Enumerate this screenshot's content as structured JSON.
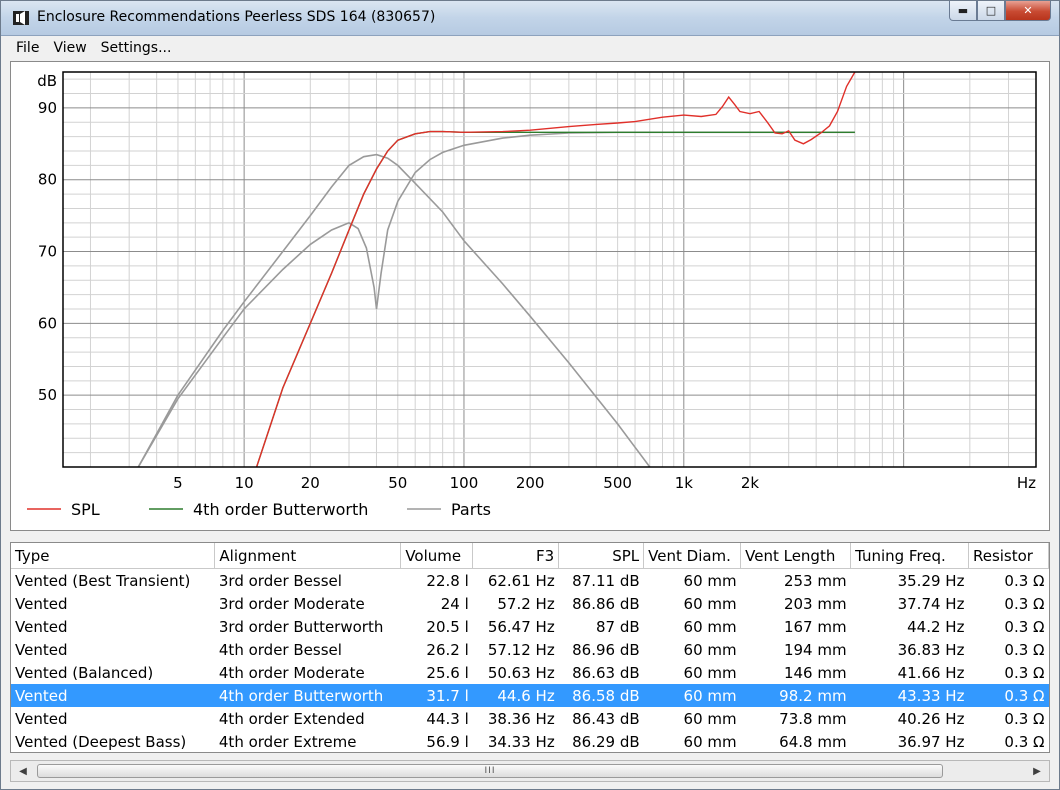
{
  "window": {
    "title": "Enclosure Recommendations Peerless SDS 164 (830657)",
    "controls": {
      "minimize": "▬",
      "maximize": "□",
      "close": "✕"
    }
  },
  "menu": {
    "items": [
      "File",
      "View",
      "Settings..."
    ]
  },
  "chart_data": {
    "type": "line",
    "x_scale": "log",
    "xlim": [
      1.5,
      40000
    ],
    "ylim": [
      40,
      95
    ],
    "ylabel": "dB",
    "xlabel": "Hz",
    "y_ticks": [
      50,
      60,
      70,
      80,
      90
    ],
    "x_ticks": [
      5,
      10,
      20,
      50,
      100,
      200,
      500,
      1000,
      2000
    ],
    "x_tick_labels": [
      "5",
      "10",
      "20",
      "50",
      "100",
      "200",
      "500",
      "1k",
      "2k"
    ],
    "grid": true,
    "legend_position": "bottom",
    "colors": {
      "SPL": "#e0302a",
      "4th order Butterworth": "#2e7d2e",
      "Parts": "#9a9a9a"
    },
    "series": [
      {
        "name": "SPL",
        "x": [
          11.4,
          15,
          20,
          25,
          30,
          35,
          40,
          45,
          50,
          60,
          70,
          80,
          100,
          150,
          200,
          300,
          400,
          500,
          600,
          800,
          1000,
          1200,
          1400,
          1500,
          1600,
          1700,
          1800,
          2000,
          2200,
          2400,
          2600,
          2800,
          3000,
          3200,
          3500,
          3800,
          4200,
          4600,
          5000,
          5500,
          6000
        ],
        "y": [
          40,
          51,
          60,
          67,
          73,
          78,
          81.5,
          84,
          85.5,
          86.4,
          86.7,
          86.7,
          86.6,
          86.7,
          86.9,
          87.4,
          87.7,
          87.9,
          88.1,
          88.7,
          89.0,
          88.8,
          89.1,
          90.2,
          91.5,
          90.5,
          89.5,
          89.2,
          89.5,
          88.0,
          86.5,
          86.4,
          86.8,
          85.5,
          85.0,
          85.6,
          86.5,
          87.5,
          89.5,
          93.0,
          95.0
        ]
      },
      {
        "name": "4th order Butterworth",
        "x": [
          11.4,
          15,
          20,
          25,
          30,
          35,
          40,
          45,
          50,
          60,
          70,
          80,
          100,
          150,
          200,
          300,
          500,
          1000,
          2000,
          6000
        ],
        "y": [
          40,
          51,
          60,
          67,
          73,
          78,
          81.5,
          84,
          85.5,
          86.4,
          86.7,
          86.7,
          86.6,
          86.6,
          86.6,
          86.6,
          86.6,
          86.6,
          86.6,
          86.6
        ]
      },
      {
        "name": "Parts",
        "x": [
          3.3,
          5,
          8,
          10,
          15,
          20,
          25,
          30,
          35,
          40,
          45,
          50,
          60,
          80,
          100,
          150,
          200,
          300,
          500,
          700
        ],
        "y": [
          40,
          50,
          59,
          63,
          70,
          75,
          79,
          82,
          83.2,
          83.5,
          83,
          82,
          79.5,
          75.5,
          71.5,
          65.5,
          61,
          54.5,
          46,
          40
        ]
      },
      {
        "name": "Parts",
        "x": [
          3.3,
          5,
          8,
          10,
          15,
          20,
          25,
          30,
          33,
          36,
          39,
          40,
          42,
          45,
          50,
          60,
          70,
          80,
          100,
          150,
          200,
          300,
          500,
          1000,
          2000,
          6000
        ],
        "y": [
          40,
          49.5,
          58,
          62,
          67.5,
          71,
          73,
          74,
          73.2,
          70.5,
          65,
          62,
          67,
          73,
          77,
          81,
          82.8,
          83.8,
          84.8,
          85.8,
          86.2,
          86.5,
          86.6,
          86.6,
          86.6,
          86.6
        ]
      }
    ]
  },
  "table": {
    "columns": [
      "Type",
      "Alignment",
      "Volume",
      "F3",
      "SPL",
      "Vent Diam.",
      "Vent Length",
      "Tuning Freq.",
      "Resistor"
    ],
    "rows": [
      [
        "Vented (Best Transient)",
        "3rd order Bessel",
        "22.8 l",
        "62.61 Hz",
        "87.11 dB",
        "60 mm",
        "253 mm",
        "35.29 Hz",
        "0.3 Ω"
      ],
      [
        "Vented",
        "3rd order Moderate",
        "24 l",
        "57.2 Hz",
        "86.86 dB",
        "60 mm",
        "203 mm",
        "37.74 Hz",
        "0.3 Ω"
      ],
      [
        "Vented",
        "3rd order Butterworth",
        "20.5 l",
        "56.47 Hz",
        "87 dB",
        "60 mm",
        "167 mm",
        "44.2 Hz",
        "0.3 Ω"
      ],
      [
        "Vented",
        "4th order Bessel",
        "26.2 l",
        "57.12 Hz",
        "86.96 dB",
        "60 mm",
        "194 mm",
        "36.83 Hz",
        "0.3 Ω"
      ],
      [
        "Vented (Balanced)",
        "4th order Moderate",
        "25.6 l",
        "50.63 Hz",
        "86.63 dB",
        "60 mm",
        "146 mm",
        "41.66 Hz",
        "0.3 Ω"
      ],
      [
        "Vented",
        "4th order Butterworth",
        "31.7 l",
        "44.6 Hz",
        "86.58 dB",
        "60 mm",
        "98.2 mm",
        "43.33 Hz",
        "0.3 Ω"
      ],
      [
        "Vented",
        "4th order Extended",
        "44.3 l",
        "38.36 Hz",
        "86.43 dB",
        "60 mm",
        "73.8 mm",
        "40.26 Hz",
        "0.3 Ω"
      ],
      [
        "Vented (Deepest Bass)",
        "4th order Extreme",
        "56.9 l",
        "34.33 Hz",
        "86.29 dB",
        "60 mm",
        "64.8 mm",
        "36.97 Hz",
        "0.3 Ω"
      ]
    ],
    "selected_row": 5
  },
  "scrollbar": {
    "left_arrow": "◀",
    "right_arrow": "▶",
    "grip": "III"
  }
}
